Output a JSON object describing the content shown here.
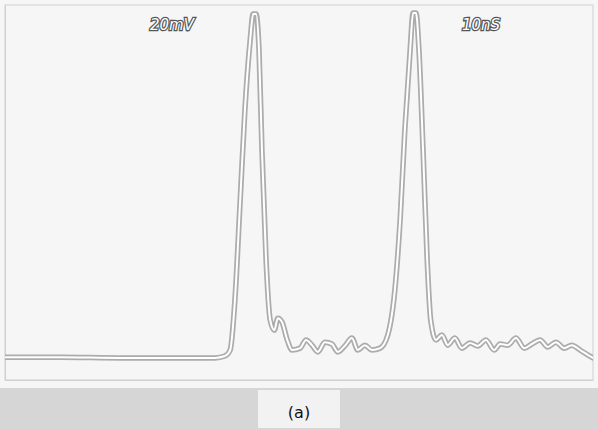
{
  "chart_data": {
    "type": "line",
    "title": "(a)",
    "annotations": [
      "20mV",
      "10nS"
    ],
    "x": [
      0,
      9.4,
      19.6,
      29.8,
      35.7,
      37.4,
      38.3,
      39.1,
      40.0,
      40.8,
      41.7,
      42.2,
      42.7,
      43.2,
      43.7,
      44.4,
      45.1,
      45.8,
      46.4,
      47.1,
      48.0,
      48.8,
      50.2,
      51.2,
      52.2,
      53.2,
      54.4,
      55.6,
      56.6,
      57.8,
      59.0,
      60.0,
      61.2,
      62.4,
      63.8,
      65.1,
      66.3,
      67.2,
      68.0,
      68.9,
      69.4,
      69.9,
      70.4,
      71.1,
      71.8,
      72.4,
      73.3,
      74.3,
      75.3,
      76.5,
      77.7,
      79.1,
      80.4,
      81.8,
      83.2,
      84.2,
      85.5,
      86.9,
      88.3,
      89.6,
      91.0,
      92.3,
      93.7,
      95.1,
      96.4,
      97.8,
      99.1,
      100
    ],
    "values": [
      6.1,
      6.1,
      5.9,
      5.9,
      5.9,
      6.4,
      8.0,
      21.3,
      48.0,
      72.0,
      90.7,
      97.6,
      97.6,
      88.0,
      61.3,
      32.0,
      16.0,
      13.3,
      16.5,
      15.5,
      10.7,
      8.0,
      8.5,
      10.7,
      9.3,
      7.5,
      10.1,
      9.6,
      7.5,
      9.1,
      11.2,
      8.0,
      9.3,
      8.0,
      8.5,
      12.0,
      24.0,
      42.7,
      66.7,
      88.0,
      97.9,
      97.9,
      88.0,
      61.3,
      32.0,
      16.0,
      10.7,
      12.0,
      9.3,
      11.2,
      8.5,
      9.9,
      9.1,
      10.7,
      8.0,
      9.6,
      9.3,
      11.2,
      8.5,
      9.6,
      10.7,
      8.8,
      10.1,
      8.5,
      9.3,
      8.0,
      6.7,
      5.9
    ],
    "color": "#9a9a9a",
    "xlim": [
      0,
      100
    ],
    "ylim": [
      0,
      100
    ],
    "tick_labels": false,
    "grid": false
  }
}
